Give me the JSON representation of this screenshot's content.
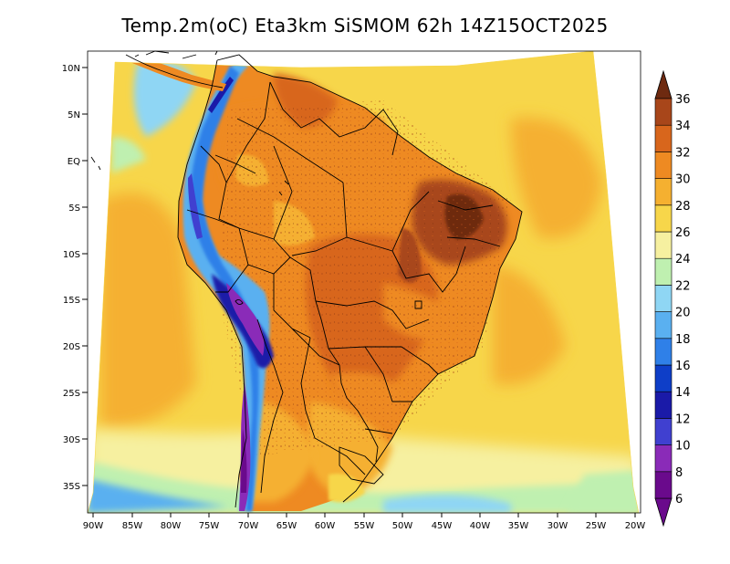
{
  "title": "Temp.2m(oC) Eta3km SiSMOM 62h 14Z15OCT2025",
  "axes": {
    "lat_labels": [
      "10N",
      "5N",
      "EQ",
      "5S",
      "10S",
      "15S",
      "20S",
      "25S",
      "30S",
      "35S"
    ],
    "lon_labels": [
      "90W",
      "85W",
      "80W",
      "75W",
      "70W",
      "65W",
      "60W",
      "55W",
      "50W",
      "45W",
      "40W",
      "35W",
      "30W",
      "25W",
      "20W"
    ]
  },
  "colorbar": {
    "labels": [
      "6",
      "8",
      "10",
      "12",
      "14",
      "16",
      "18",
      "20",
      "22",
      "24",
      "26",
      "28",
      "30",
      "32",
      "34",
      "36"
    ],
    "colors": [
      "#6a0a8c",
      "#8a2bb8",
      "#4040d0",
      "#1a1aa8",
      "#0e3ec8",
      "#2f80e8",
      "#5ab0f0",
      "#8fd6f4",
      "#bff0b0",
      "#f6f0a0",
      "#f7d64a",
      "#f5b030",
      "#ee8a22",
      "#d8661c",
      "#a8461a",
      "#6e2a10"
    ]
  },
  "chart_data": {
    "type": "heatmap",
    "title": "Temp.2m(oC) Eta3km SiSMOM 62h 14Z15OCT2025",
    "variable": "2m temperature (oC)",
    "model": "Eta3km SiSMOM",
    "forecast_hour": "62h",
    "valid_time": "14Z15OCT2025",
    "lon_range": [
      -90,
      -20
    ],
    "lat_range": [
      -37.5,
      11
    ],
    "scale_min": 6,
    "scale_max": 36,
    "scale_step": 2
  }
}
